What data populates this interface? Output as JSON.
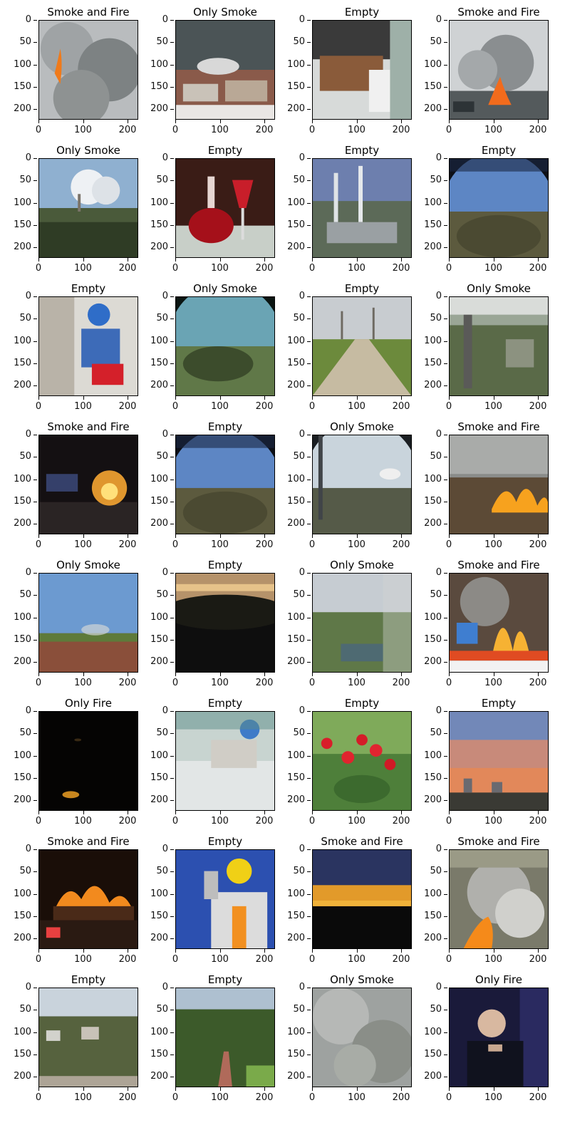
{
  "chart_data": {
    "type": "image_grid",
    "rows": 8,
    "cols": 4,
    "xticks": [
      0,
      100,
      200
    ],
    "yticks": [
      0,
      50,
      100,
      150,
      200
    ],
    "xlim": [
      0,
      224
    ],
    "ylim": [
      224,
      0
    ],
    "panels": [
      {
        "title": "Smoke and Fire",
        "scene": "smoke_fire"
      },
      {
        "title": "Only Smoke",
        "scene": "city_smoke"
      },
      {
        "title": "Empty",
        "scene": "classroom"
      },
      {
        "title": "Smoke and Fire",
        "scene": "car_fire"
      },
      {
        "title": "Only Smoke",
        "scene": "forest_smoke"
      },
      {
        "title": "Empty",
        "scene": "wine"
      },
      {
        "title": "Empty",
        "scene": "towers"
      },
      {
        "title": "Empty",
        "scene": "fisheye_land"
      },
      {
        "title": "Empty",
        "scene": "worker_blue"
      },
      {
        "title": "Only Smoke",
        "scene": "fisheye_teal"
      },
      {
        "title": "Empty",
        "scene": "road"
      },
      {
        "title": "Only Smoke",
        "scene": "cctv_forest"
      },
      {
        "title": "Smoke and Fire",
        "scene": "night_fire"
      },
      {
        "title": "Empty",
        "scene": "fisheye_land"
      },
      {
        "title": "Only Smoke",
        "scene": "fisheye_smoke"
      },
      {
        "title": "Smoke and Fire",
        "scene": "grass_fire"
      },
      {
        "title": "Only Smoke",
        "scene": "field_smoke"
      },
      {
        "title": "Empty",
        "scene": "dusk"
      },
      {
        "title": "Only Smoke",
        "scene": "cctv_green"
      },
      {
        "title": "Smoke and Fire",
        "scene": "news_fire"
      },
      {
        "title": "Only Fire",
        "scene": "dark_fire"
      },
      {
        "title": "Empty",
        "scene": "worker_floor"
      },
      {
        "title": "Empty",
        "scene": "cherries"
      },
      {
        "title": "Empty",
        "scene": "orange_sky"
      },
      {
        "title": "Smoke and Fire",
        "scene": "building_fire"
      },
      {
        "title": "Empty",
        "scene": "worker_yellow"
      },
      {
        "title": "Smoke and Fire",
        "scene": "horizon_fire"
      },
      {
        "title": "Smoke and Fire",
        "scene": "slope_fire"
      },
      {
        "title": "Empty",
        "scene": "hill_town"
      },
      {
        "title": "Empty",
        "scene": "park"
      },
      {
        "title": "Only Smoke",
        "scene": "haze"
      },
      {
        "title": "Only Fire",
        "scene": "person_dark"
      }
    ]
  }
}
